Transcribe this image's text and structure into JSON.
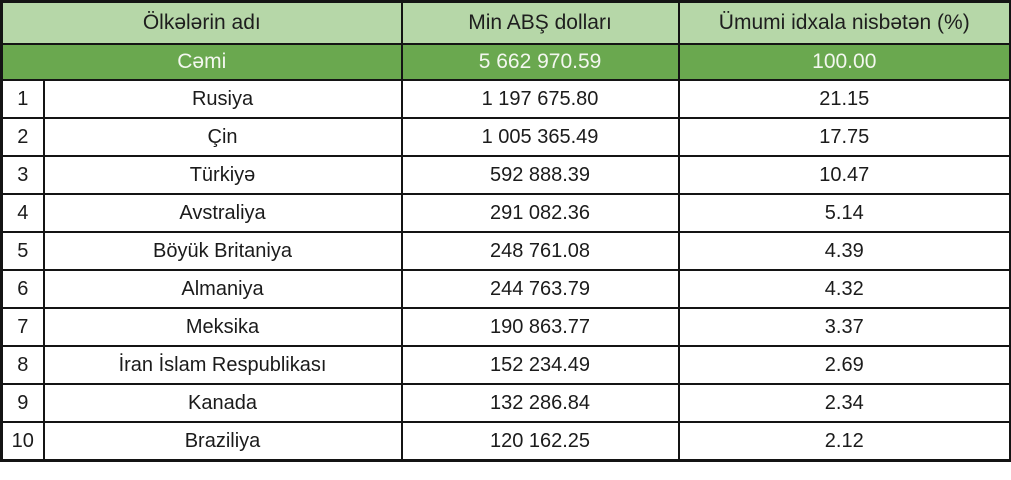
{
  "chart_data": {
    "type": "table",
    "columns": {
      "name": "Ölkələrin adı",
      "value": "Min ABŞ dolları",
      "percent": "Ümumi idxala nisbətən (%)"
    },
    "total": {
      "label": "Cəmi",
      "value": "5 662 970.59",
      "percent": "100.00"
    },
    "rows": [
      {
        "rank": "1",
        "country": "Rusiya",
        "value": "1 197 675.80",
        "percent": "21.15"
      },
      {
        "rank": "2",
        "country": "Çin",
        "value": "1 005 365.49",
        "percent": "17.75"
      },
      {
        "rank": "3",
        "country": "Türkiyə",
        "value": "592 888.39",
        "percent": "10.47"
      },
      {
        "rank": "4",
        "country": "Avstraliya",
        "value": "291 082.36",
        "percent": "5.14"
      },
      {
        "rank": "5",
        "country": "Böyük Britaniya",
        "value": "248 761.08",
        "percent": "4.39"
      },
      {
        "rank": "6",
        "country": "Almaniya",
        "value": "244 763.79",
        "percent": "4.32"
      },
      {
        "rank": "7",
        "country": "Meksika",
        "value": "190 863.77",
        "percent": "3.37"
      },
      {
        "rank": "8",
        "country": "İran İslam Respublikası",
        "value": "152 234.49",
        "percent": "2.69"
      },
      {
        "rank": "9",
        "country": "Kanada",
        "value": "132 286.84",
        "percent": "2.34"
      },
      {
        "rank": "10",
        "country": "Braziliya",
        "value": "120 162.25",
        "percent": "2.12"
      }
    ]
  },
  "colors": {
    "header_bg": "#b6d7a8",
    "total_bg": "#6aa84f",
    "total_text": "#f3f7ef",
    "body_bg": "#ffffff",
    "text": "#1b1b1b",
    "border": "#141414"
  }
}
